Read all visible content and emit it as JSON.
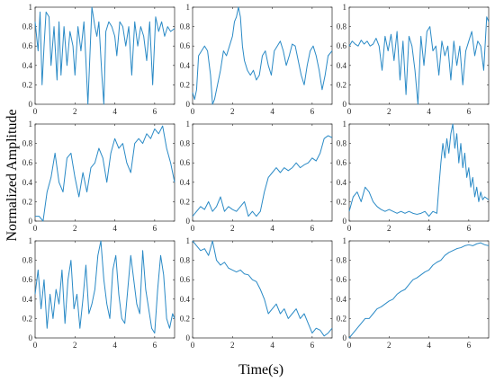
{
  "figure": {
    "ylabel": "Normalized Amplitude",
    "xlabel": "Time(s)",
    "line_color": "#2a8ac6"
  },
  "chart_data": [
    {
      "type": "line",
      "xlim": [
        0,
        7
      ],
      "ylim": [
        0,
        1
      ],
      "x_ticks": [
        0,
        2,
        4,
        6
      ],
      "y_ticks": [
        0,
        0.2,
        0.4,
        0.6,
        0.8,
        1
      ],
      "x_tick_labels": [
        "0",
        "2",
        "4",
        "6"
      ],
      "y_tick_labels": [
        "0",
        "0.2",
        "0.4",
        "0.6",
        "0.8",
        "1"
      ],
      "series": [
        {
          "x": [
            0,
            0.15,
            0.25,
            0.35,
            0.45,
            0.55,
            0.7,
            0.8,
            0.95,
            1.1,
            1.2,
            1.3,
            1.45,
            1.6,
            1.75,
            1.9,
            2.0,
            2.15,
            2.3,
            2.45,
            2.55,
            2.65,
            2.75,
            2.85,
            3.0,
            3.1,
            3.2,
            3.35,
            3.45,
            3.55,
            3.7,
            3.85,
            4.0,
            4.1,
            4.25,
            4.4,
            4.55,
            4.7,
            4.85,
            5.0,
            5.15,
            5.3,
            5.45,
            5.6,
            5.75,
            5.9,
            6.05,
            6.2,
            6.35,
            6.5,
            6.65,
            6.8,
            7.0
          ],
          "y": [
            0.85,
            0.55,
            0.95,
            0.2,
            0.6,
            0.95,
            0.9,
            0.4,
            0.8,
            0.25,
            0.85,
            0.3,
            0.8,
            0.4,
            0.75,
            0.6,
            0.3,
            0.8,
            0.55,
            0.85,
            0.45,
            0.0,
            0.5,
            1.0,
            0.8,
            0.7,
            0.85,
            0.3,
            0.0,
            0.75,
            0.85,
            0.8,
            0.7,
            0.5,
            0.85,
            0.8,
            0.6,
            0.8,
            0.3,
            0.85,
            0.6,
            0.8,
            0.7,
            0.45,
            0.85,
            0.2,
            0.9,
            0.75,
            0.85,
            0.7,
            0.8,
            0.75,
            0.78
          ]
        }
      ]
    },
    {
      "type": "line",
      "xlim": [
        0,
        7
      ],
      "ylim": [
        0,
        1
      ],
      "x_ticks": [
        0,
        2,
        4,
        6
      ],
      "y_ticks": [
        0,
        0.2,
        0.4,
        0.6,
        0.8,
        1
      ],
      "x_tick_labels": [
        "0",
        "2",
        "4",
        "6"
      ],
      "y_tick_labels": [
        "0",
        "0.2",
        "0.4",
        "0.6",
        "0.8",
        "1"
      ],
      "series": [
        {
          "x": [
            0,
            0.1,
            0.2,
            0.3,
            0.45,
            0.6,
            0.75,
            0.9,
            1.0,
            1.1,
            1.25,
            1.4,
            1.55,
            1.7,
            1.85,
            2.0,
            2.1,
            2.2,
            2.3,
            2.4,
            2.5,
            2.6,
            2.75,
            2.9,
            3.05,
            3.2,
            3.35,
            3.5,
            3.65,
            3.8,
            3.95,
            4.1,
            4.25,
            4.4,
            4.55,
            4.7,
            4.85,
            5.0,
            5.15,
            5.3,
            5.45,
            5.6,
            5.75,
            5.9,
            6.05,
            6.2,
            6.35,
            6.5,
            6.65,
            6.8,
            7.0
          ],
          "y": [
            0.12,
            0.05,
            0.15,
            0.5,
            0.55,
            0.6,
            0.55,
            0.3,
            0.0,
            0.05,
            0.2,
            0.35,
            0.55,
            0.5,
            0.6,
            0.7,
            0.85,
            0.9,
            1.0,
            0.9,
            0.6,
            0.45,
            0.35,
            0.3,
            0.35,
            0.25,
            0.3,
            0.5,
            0.55,
            0.4,
            0.3,
            0.55,
            0.6,
            0.65,
            0.55,
            0.4,
            0.5,
            0.62,
            0.6,
            0.45,
            0.3,
            0.2,
            0.4,
            0.55,
            0.6,
            0.5,
            0.35,
            0.15,
            0.3,
            0.5,
            0.55
          ]
        }
      ]
    },
    {
      "type": "line",
      "xlim": [
        0,
        7
      ],
      "ylim": [
        0,
        1
      ],
      "x_ticks": [
        0,
        2,
        4,
        6
      ],
      "y_ticks": [
        0,
        0.2,
        0.4,
        0.6,
        0.8,
        1
      ],
      "x_tick_labels": [
        "0",
        "2",
        "4",
        "6"
      ],
      "y_tick_labels": [
        "0",
        "0.2",
        "0.4",
        "0.6",
        "0.8",
        "1"
      ],
      "series": [
        {
          "x": [
            0,
            0.15,
            0.3,
            0.45,
            0.6,
            0.75,
            0.9,
            1.05,
            1.2,
            1.35,
            1.5,
            1.65,
            1.8,
            1.95,
            2.1,
            2.25,
            2.4,
            2.55,
            2.7,
            2.85,
            3.0,
            3.15,
            3.3,
            3.45,
            3.6,
            3.75,
            3.9,
            4.05,
            4.2,
            4.35,
            4.5,
            4.65,
            4.8,
            4.95,
            5.1,
            5.25,
            5.4,
            5.55,
            5.7,
            5.85,
            6.0,
            6.15,
            6.3,
            6.45,
            6.6,
            6.75,
            6.9,
            7.0
          ],
          "y": [
            0.6,
            0.65,
            0.62,
            0.6,
            0.66,
            0.62,
            0.65,
            0.6,
            0.62,
            0.68,
            0.6,
            0.35,
            0.7,
            0.55,
            0.72,
            0.45,
            0.75,
            0.25,
            0.65,
            0.1,
            0.7,
            0.6,
            0.35,
            0.0,
            0.7,
            0.4,
            0.75,
            0.8,
            0.55,
            0.6,
            0.3,
            0.65,
            0.5,
            0.6,
            0.25,
            0.65,
            0.4,
            0.6,
            0.2,
            0.55,
            0.65,
            0.75,
            0.5,
            0.65,
            0.6,
            0.35,
            0.9,
            0.85
          ]
        }
      ]
    },
    {
      "type": "line",
      "xlim": [
        0,
        7
      ],
      "ylim": [
        0,
        1
      ],
      "x_ticks": [
        0,
        2,
        4,
        6
      ],
      "y_ticks": [
        0,
        0.2,
        0.4,
        0.6,
        0.8,
        1
      ],
      "x_tick_labels": [
        "0",
        "2",
        "4",
        "6"
      ],
      "y_tick_labels": [
        "0",
        "0.2",
        "0.4",
        "0.6",
        "0.8",
        "1"
      ],
      "series": [
        {
          "x": [
            0,
            0.2,
            0.4,
            0.6,
            0.8,
            1.0,
            1.2,
            1.4,
            1.6,
            1.8,
            2.0,
            2.2,
            2.4,
            2.6,
            2.8,
            3.0,
            3.2,
            3.4,
            3.6,
            3.8,
            4.0,
            4.2,
            4.4,
            4.6,
            4.8,
            5.0,
            5.2,
            5.4,
            5.6,
            5.8,
            6.0,
            6.2,
            6.4,
            6.6,
            6.8,
            7.0
          ],
          "y": [
            0.05,
            0.05,
            0.0,
            0.3,
            0.45,
            0.7,
            0.4,
            0.3,
            0.65,
            0.7,
            0.45,
            0.25,
            0.5,
            0.3,
            0.55,
            0.6,
            0.75,
            0.65,
            0.4,
            0.7,
            0.85,
            0.75,
            0.8,
            0.6,
            0.5,
            0.8,
            0.85,
            0.8,
            0.9,
            0.85,
            0.95,
            0.9,
            0.98,
            0.75,
            0.6,
            0.4
          ]
        }
      ]
    },
    {
      "type": "line",
      "xlim": [
        0,
        7
      ],
      "ylim": [
        0,
        1
      ],
      "x_ticks": [
        0,
        2,
        4,
        6
      ],
      "y_ticks": [
        0,
        0.2,
        0.4,
        0.6,
        0.8,
        1
      ],
      "x_tick_labels": [
        "0",
        "2",
        "4",
        "6"
      ],
      "y_tick_labels": [
        "0",
        "0.2",
        "0.4",
        "0.6",
        "0.8",
        "1"
      ],
      "series": [
        {
          "x": [
            0,
            0.2,
            0.4,
            0.6,
            0.8,
            1.0,
            1.2,
            1.4,
            1.6,
            1.8,
            2.0,
            2.2,
            2.4,
            2.6,
            2.8,
            3.0,
            3.2,
            3.4,
            3.6,
            3.8,
            4.0,
            4.2,
            4.4,
            4.6,
            4.8,
            5.0,
            5.2,
            5.4,
            5.6,
            5.8,
            6.0,
            6.2,
            6.4,
            6.6,
            6.8,
            7.0
          ],
          "y": [
            0.05,
            0.1,
            0.15,
            0.12,
            0.2,
            0.1,
            0.15,
            0.25,
            0.1,
            0.15,
            0.12,
            0.1,
            0.15,
            0.2,
            0.05,
            0.1,
            0.05,
            0.1,
            0.3,
            0.45,
            0.5,
            0.55,
            0.5,
            0.55,
            0.52,
            0.55,
            0.6,
            0.55,
            0.58,
            0.6,
            0.65,
            0.62,
            0.7,
            0.85,
            0.88,
            0.86
          ]
        }
      ]
    },
    {
      "type": "line",
      "xlim": [
        0,
        7
      ],
      "ylim": [
        0,
        1
      ],
      "x_ticks": [
        0,
        2,
        4,
        6
      ],
      "y_ticks": [
        0,
        0.2,
        0.4,
        0.6,
        0.8,
        1
      ],
      "x_tick_labels": [
        "0",
        "2",
        "4",
        "6"
      ],
      "y_tick_labels": [
        "0",
        "0.2",
        "0.4",
        "0.6",
        "0.8",
        "1"
      ],
      "series": [
        {
          "x": [
            0,
            0.2,
            0.4,
            0.6,
            0.8,
            1.0,
            1.2,
            1.4,
            1.6,
            1.8,
            2.0,
            2.2,
            2.4,
            2.6,
            2.8,
            3.0,
            3.2,
            3.4,
            3.6,
            3.8,
            4.0,
            4.2,
            4.4,
            4.5,
            4.6,
            4.7,
            4.8,
            4.9,
            5.0,
            5.1,
            5.2,
            5.3,
            5.4,
            5.5,
            5.6,
            5.7,
            5.8,
            5.9,
            6.0,
            6.1,
            6.2,
            6.3,
            6.4,
            6.5,
            6.6,
            6.7,
            6.8,
            7.0
          ],
          "y": [
            0.1,
            0.25,
            0.3,
            0.2,
            0.35,
            0.3,
            0.2,
            0.15,
            0.12,
            0.1,
            0.12,
            0.1,
            0.08,
            0.1,
            0.08,
            0.1,
            0.08,
            0.07,
            0.08,
            0.1,
            0.05,
            0.1,
            0.08,
            0.35,
            0.6,
            0.8,
            0.65,
            0.85,
            0.7,
            0.9,
            1.0,
            0.75,
            0.9,
            0.6,
            0.8,
            0.55,
            0.7,
            0.45,
            0.55,
            0.35,
            0.45,
            0.25,
            0.35,
            0.2,
            0.3,
            0.22,
            0.25,
            0.22
          ]
        }
      ]
    },
    {
      "type": "line",
      "xlim": [
        0,
        7
      ],
      "ylim": [
        0,
        1
      ],
      "x_ticks": [
        0,
        2,
        4,
        6
      ],
      "y_ticks": [
        0,
        0.2,
        0.4,
        0.6,
        0.8,
        1
      ],
      "x_tick_labels": [
        "0",
        "2",
        "4",
        "6"
      ],
      "y_tick_labels": [
        "0",
        "0.2",
        "0.4",
        "0.6",
        "0.8",
        "1"
      ],
      "series": [
        {
          "x": [
            0,
            0.15,
            0.3,
            0.45,
            0.6,
            0.75,
            0.9,
            1.05,
            1.2,
            1.35,
            1.5,
            1.65,
            1.8,
            1.95,
            2.1,
            2.25,
            2.4,
            2.55,
            2.7,
            2.85,
            3.0,
            3.15,
            3.3,
            3.45,
            3.6,
            3.75,
            3.9,
            4.05,
            4.2,
            4.35,
            4.5,
            4.65,
            4.8,
            4.95,
            5.1,
            5.25,
            5.4,
            5.55,
            5.7,
            5.85,
            6.0,
            6.15,
            6.3,
            6.45,
            6.6,
            6.75,
            6.9,
            7.0
          ],
          "y": [
            0.45,
            0.7,
            0.3,
            0.6,
            0.1,
            0.45,
            0.2,
            0.5,
            0.35,
            0.7,
            0.15,
            0.6,
            0.8,
            0.3,
            0.45,
            0.1,
            0.4,
            0.75,
            0.25,
            0.35,
            0.5,
            0.85,
            1.0,
            0.6,
            0.35,
            0.2,
            0.7,
            0.85,
            0.45,
            0.2,
            0.15,
            0.5,
            0.85,
            0.6,
            0.35,
            0.25,
            0.9,
            0.5,
            0.3,
            0.1,
            0.05,
            0.5,
            0.85,
            0.65,
            0.2,
            0.1,
            0.25,
            0.2
          ]
        }
      ]
    },
    {
      "type": "line",
      "xlim": [
        0,
        7
      ],
      "ylim": [
        0,
        1
      ],
      "x_ticks": [
        0,
        2,
        4,
        6
      ],
      "y_ticks": [
        0,
        0.2,
        0.4,
        0.6,
        0.8,
        1
      ],
      "x_tick_labels": [
        "0",
        "2",
        "4",
        "6"
      ],
      "y_tick_labels": [
        "0",
        "0.2",
        "0.4",
        "0.6",
        "0.8",
        "1"
      ],
      "series": [
        {
          "x": [
            0,
            0.2,
            0.4,
            0.6,
            0.8,
            1.0,
            1.2,
            1.4,
            1.6,
            1.8,
            2.0,
            2.2,
            2.4,
            2.6,
            2.8,
            3.0,
            3.2,
            3.4,
            3.6,
            3.8,
            4.0,
            4.2,
            4.4,
            4.6,
            4.8,
            5.0,
            5.2,
            5.4,
            5.6,
            5.8,
            6.0,
            6.2,
            6.4,
            6.6,
            6.8,
            7.0
          ],
          "y": [
            1.0,
            0.95,
            0.9,
            0.92,
            0.85,
            1.0,
            0.8,
            0.75,
            0.78,
            0.72,
            0.7,
            0.68,
            0.7,
            0.66,
            0.65,
            0.6,
            0.58,
            0.5,
            0.4,
            0.25,
            0.3,
            0.35,
            0.25,
            0.3,
            0.2,
            0.25,
            0.3,
            0.2,
            0.25,
            0.15,
            0.05,
            0.1,
            0.08,
            0.02,
            0.05,
            0.1
          ]
        }
      ]
    },
    {
      "type": "line",
      "xlim": [
        0,
        7
      ],
      "ylim": [
        0,
        1
      ],
      "x_ticks": [
        0,
        2,
        4,
        6
      ],
      "y_ticks": [
        0,
        0.2,
        0.4,
        0.6,
        0.8,
        1
      ],
      "x_tick_labels": [
        "0",
        "2",
        "4",
        "6"
      ],
      "y_tick_labels": [
        "0",
        "0.2",
        "0.4",
        "0.6",
        "0.8",
        "1"
      ],
      "series": [
        {
          "x": [
            0,
            0.2,
            0.4,
            0.6,
            0.8,
            1.0,
            1.2,
            1.4,
            1.6,
            1.8,
            2.0,
            2.2,
            2.4,
            2.6,
            2.8,
            3.0,
            3.2,
            3.4,
            3.6,
            3.8,
            4.0,
            4.2,
            4.4,
            4.6,
            4.8,
            5.0,
            5.2,
            5.4,
            5.6,
            5.8,
            6.0,
            6.2,
            6.4,
            6.6,
            6.8,
            7.0
          ],
          "y": [
            0.0,
            0.05,
            0.1,
            0.15,
            0.2,
            0.2,
            0.25,
            0.3,
            0.32,
            0.35,
            0.38,
            0.4,
            0.45,
            0.48,
            0.5,
            0.55,
            0.6,
            0.62,
            0.65,
            0.68,
            0.7,
            0.75,
            0.78,
            0.8,
            0.85,
            0.88,
            0.9,
            0.92,
            0.93,
            0.95,
            0.96,
            0.95,
            0.97,
            0.98,
            0.96,
            0.95
          ]
        }
      ]
    }
  ]
}
